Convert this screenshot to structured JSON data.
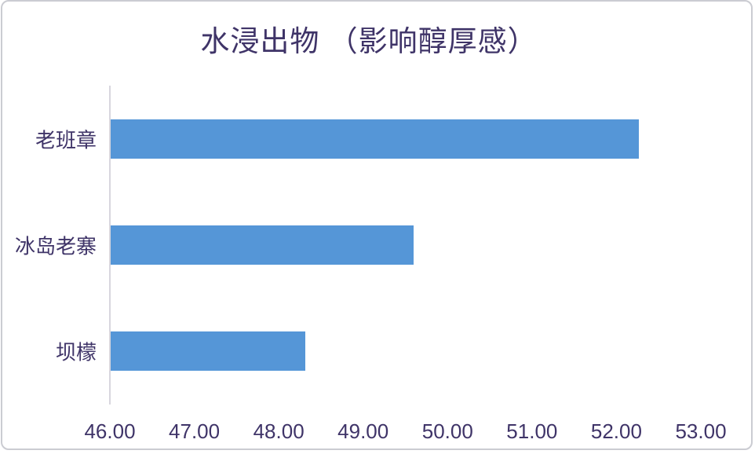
{
  "chart_data": {
    "type": "bar",
    "orientation": "horizontal",
    "title": "水浸出物 （影响醇厚感）",
    "categories": [
      "老班章",
      "冰岛老寨",
      "坝檬"
    ],
    "values": [
      52.26,
      49.59,
      48.31
    ],
    "xlim": [
      46,
      53
    ],
    "x_tick_labels": [
      "46.00",
      "47.00",
      "48.00",
      "49.00",
      "50.00",
      "51.00",
      "52.00",
      "53.00"
    ],
    "xlabel": "",
    "ylabel": "",
    "grid": false,
    "legend": false,
    "data_labels": false,
    "colors": {
      "bar": "#5596d7",
      "text": "#3f3468",
      "axis_line": "#d8d6de",
      "frame_border": "#cbccd2",
      "background": "#ffffff"
    }
  }
}
